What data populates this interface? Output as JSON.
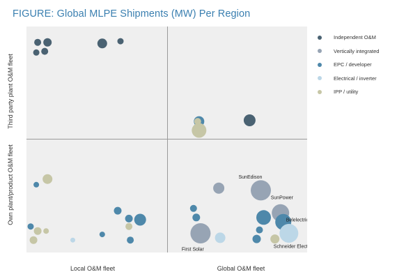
{
  "chart_data": {
    "type": "scatter",
    "title": "FIGURE: Global MLPE Shipments (MW) Per Region",
    "quadrant_axes": {
      "y_upper_label": "Third party plant O&M fleet",
      "y_lower_label": "Own plant/product O&M fleet",
      "x_left_label": "Local O&M fleet",
      "x_right_label": "Global O&M fleet"
    },
    "xlim": [
      0,
      100
    ],
    "ylim": [
      0,
      100
    ],
    "grid": false,
    "legend_position": "right",
    "categories": [
      {
        "key": "ind",
        "name": "Independent O&M",
        "color": "#4a6272"
      },
      {
        "key": "vert",
        "name": "Vertically integrated",
        "color": "#97a4b4"
      },
      {
        "key": "epc",
        "name": "EPC / developer",
        "color": "#4e88aa"
      },
      {
        "key": "elec",
        "name": "Electrical / inverter",
        "color": "#bcd7e7"
      },
      {
        "key": "ipp",
        "name": "IPP / utility",
        "color": "#c6c6a6"
      }
    ],
    "points": [
      {
        "x": 4,
        "y": 93,
        "size": 5,
        "cat": "ind",
        "label": ""
      },
      {
        "x": 7.5,
        "y": 93,
        "size": 6,
        "cat": "ind",
        "label": ""
      },
      {
        "x": 3.5,
        "y": 88.5,
        "size": 4.5,
        "cat": "ind",
        "label": ""
      },
      {
        "x": 6.5,
        "y": 89,
        "size": 5,
        "cat": "ind",
        "label": ""
      },
      {
        "x": 27,
        "y": 92.5,
        "size": 7,
        "cat": "ind",
        "label": ""
      },
      {
        "x": 33.5,
        "y": 93.5,
        "size": 4.5,
        "cat": "ind",
        "label": ""
      },
      {
        "x": 79.5,
        "y": 58.5,
        "size": 8.5,
        "cat": "ind",
        "label": ""
      },
      {
        "x": 61.5,
        "y": 58,
        "size": 7.5,
        "cat": "epc",
        "label": ""
      },
      {
        "x": 61.5,
        "y": 54,
        "size": 10.5,
        "cat": "ipp",
        "label": ""
      },
      {
        "x": 61,
        "y": 58,
        "size": 5,
        "cat": "ipp",
        "label": ""
      },
      {
        "x": 3.5,
        "y": 30,
        "size": 4,
        "cat": "epc",
        "label": ""
      },
      {
        "x": 7.5,
        "y": 32.5,
        "size": 7,
        "cat": "ipp",
        "label": ""
      },
      {
        "x": 1.5,
        "y": 11.5,
        "size": 4.5,
        "cat": "epc",
        "label": ""
      },
      {
        "x": 4,
        "y": 9.5,
        "size": 5.5,
        "cat": "ipp",
        "label": ""
      },
      {
        "x": 7,
        "y": 9.5,
        "size": 4,
        "cat": "ipp",
        "label": ""
      },
      {
        "x": 2.5,
        "y": 5.5,
        "size": 5.5,
        "cat": "ipp",
        "label": ""
      },
      {
        "x": 16.5,
        "y": 5.5,
        "size": 3.5,
        "cat": "elec",
        "label": ""
      },
      {
        "x": 32.5,
        "y": 18.5,
        "size": 5.5,
        "cat": "epc",
        "label": ""
      },
      {
        "x": 36.5,
        "y": 15,
        "size": 5.5,
        "cat": "epc",
        "label": ""
      },
      {
        "x": 40.5,
        "y": 14.5,
        "size": 8.5,
        "cat": "epc",
        "label": ""
      },
      {
        "x": 36.5,
        "y": 11.5,
        "size": 5,
        "cat": "ipp",
        "label": ""
      },
      {
        "x": 27,
        "y": 8,
        "size": 4,
        "cat": "epc",
        "label": ""
      },
      {
        "x": 37,
        "y": 5.5,
        "size": 5,
        "cat": "epc",
        "label": ""
      },
      {
        "x": 68.5,
        "y": 28.5,
        "size": 8,
        "cat": "vert",
        "label": ""
      },
      {
        "x": 83.5,
        "y": 27.5,
        "size": 14.5,
        "cat": "vert",
        "label": "SunEdison"
      },
      {
        "x": 59.5,
        "y": 19.5,
        "size": 5,
        "cat": "epc",
        "label": ""
      },
      {
        "x": 60.5,
        "y": 15.5,
        "size": 5.5,
        "cat": "epc",
        "label": ""
      },
      {
        "x": 84.5,
        "y": 15.5,
        "size": 10.5,
        "cat": "epc",
        "label": ""
      },
      {
        "x": 90.5,
        "y": 17.5,
        "size": 12.5,
        "cat": "vert",
        "label": "SunPower"
      },
      {
        "x": 91.5,
        "y": 13.5,
        "size": 11.5,
        "cat": "epc",
        "label": "Belelectric"
      },
      {
        "x": 83,
        "y": 10,
        "size": 5,
        "cat": "epc",
        "label": ""
      },
      {
        "x": 62,
        "y": 8.5,
        "size": 14.5,
        "cat": "vert",
        "label": "First Solar"
      },
      {
        "x": 69,
        "y": 6.5,
        "size": 7.5,
        "cat": "elec",
        "label": ""
      },
      {
        "x": 82,
        "y": 6,
        "size": 6,
        "cat": "epc",
        "label": ""
      },
      {
        "x": 88.5,
        "y": 6,
        "size": 6.5,
        "cat": "ipp",
        "label": ""
      },
      {
        "x": 93.5,
        "y": 8.5,
        "size": 13.5,
        "cat": "elec",
        "label": "Schneider Electric"
      }
    ]
  }
}
